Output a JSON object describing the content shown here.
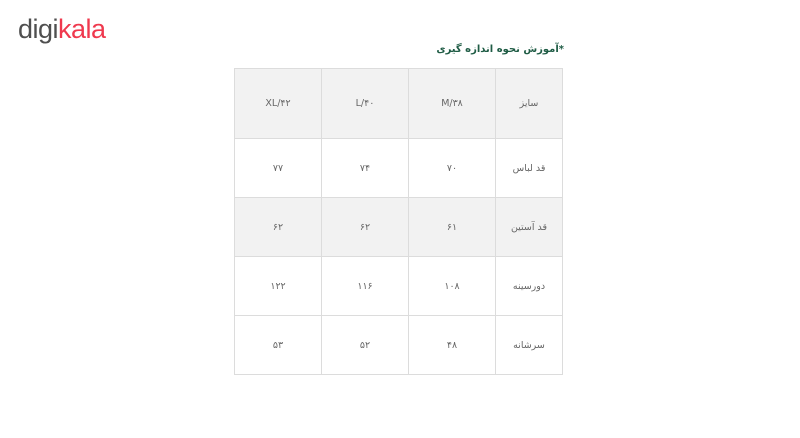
{
  "logo": {
    "part1": "digi",
    "part2": "kala",
    "colors": {
      "gray": "#4f4f4f",
      "red": "#ef394e"
    }
  },
  "title": "*آموزش نحوه اندازه گیری",
  "table": {
    "header": [
      "سایز",
      "M/۳۸",
      "L/۴۰",
      "XL/۴۲"
    ],
    "rows": [
      [
        "قد لباس",
        "۷۰",
        "۷۴",
        "۷۷"
      ],
      [
        "قد آستین",
        "۶۱",
        "۶۲",
        "۶۲"
      ],
      [
        "دورسینه",
        "۱۰۸",
        "۱۱۶",
        "۱۲۲"
      ],
      [
        "سرشانه",
        "۴۸",
        "۵۲",
        "۵۳"
      ]
    ]
  }
}
